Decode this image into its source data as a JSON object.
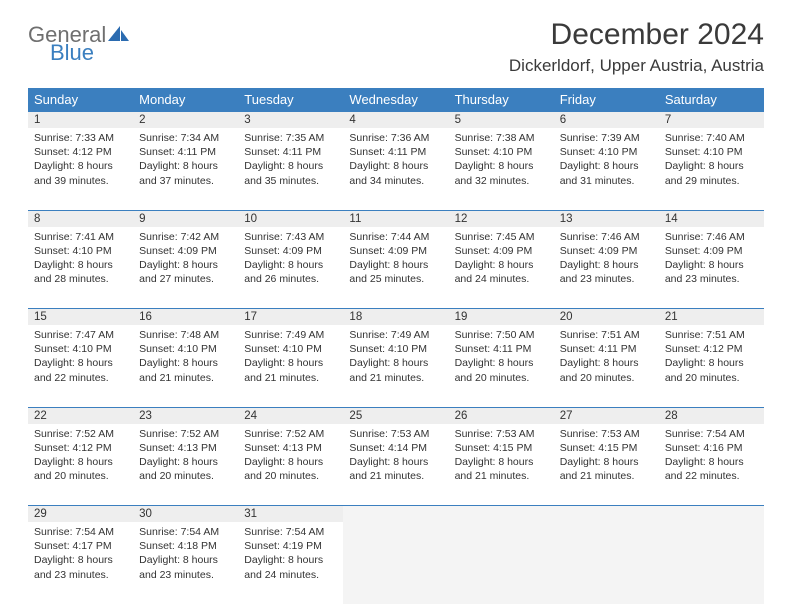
{
  "logo": {
    "text1": "General",
    "text2": "Blue",
    "icon_color": "#2b6bb0",
    "text1_color": "#6f6f6f",
    "text2_color": "#3b7fbf"
  },
  "title": "December 2024",
  "location": "Dickerldorf, Upper Austria, Austria",
  "colors": {
    "header_bg": "#3b7fbf",
    "header_text": "#ffffff",
    "daybar_bg": "#eeeeee",
    "border": "#3b7fbf",
    "empty_bg": "#f4f4f4",
    "text": "#333333"
  },
  "day_headers": [
    "Sunday",
    "Monday",
    "Tuesday",
    "Wednesday",
    "Thursday",
    "Friday",
    "Saturday"
  ],
  "weeks": [
    {
      "nums": [
        "1",
        "2",
        "3",
        "4",
        "5",
        "6",
        "7"
      ],
      "cells": [
        {
          "sunrise": "Sunrise: 7:33 AM",
          "sunset": "Sunset: 4:12 PM",
          "day1": "Daylight: 8 hours",
          "day2": "and 39 minutes."
        },
        {
          "sunrise": "Sunrise: 7:34 AM",
          "sunset": "Sunset: 4:11 PM",
          "day1": "Daylight: 8 hours",
          "day2": "and 37 minutes."
        },
        {
          "sunrise": "Sunrise: 7:35 AM",
          "sunset": "Sunset: 4:11 PM",
          "day1": "Daylight: 8 hours",
          "day2": "and 35 minutes."
        },
        {
          "sunrise": "Sunrise: 7:36 AM",
          "sunset": "Sunset: 4:11 PM",
          "day1": "Daylight: 8 hours",
          "day2": "and 34 minutes."
        },
        {
          "sunrise": "Sunrise: 7:38 AM",
          "sunset": "Sunset: 4:10 PM",
          "day1": "Daylight: 8 hours",
          "day2": "and 32 minutes."
        },
        {
          "sunrise": "Sunrise: 7:39 AM",
          "sunset": "Sunset: 4:10 PM",
          "day1": "Daylight: 8 hours",
          "day2": "and 31 minutes."
        },
        {
          "sunrise": "Sunrise: 7:40 AM",
          "sunset": "Sunset: 4:10 PM",
          "day1": "Daylight: 8 hours",
          "day2": "and 29 minutes."
        }
      ]
    },
    {
      "nums": [
        "8",
        "9",
        "10",
        "11",
        "12",
        "13",
        "14"
      ],
      "cells": [
        {
          "sunrise": "Sunrise: 7:41 AM",
          "sunset": "Sunset: 4:10 PM",
          "day1": "Daylight: 8 hours",
          "day2": "and 28 minutes."
        },
        {
          "sunrise": "Sunrise: 7:42 AM",
          "sunset": "Sunset: 4:09 PM",
          "day1": "Daylight: 8 hours",
          "day2": "and 27 minutes."
        },
        {
          "sunrise": "Sunrise: 7:43 AM",
          "sunset": "Sunset: 4:09 PM",
          "day1": "Daylight: 8 hours",
          "day2": "and 26 minutes."
        },
        {
          "sunrise": "Sunrise: 7:44 AM",
          "sunset": "Sunset: 4:09 PM",
          "day1": "Daylight: 8 hours",
          "day2": "and 25 minutes."
        },
        {
          "sunrise": "Sunrise: 7:45 AM",
          "sunset": "Sunset: 4:09 PM",
          "day1": "Daylight: 8 hours",
          "day2": "and 24 minutes."
        },
        {
          "sunrise": "Sunrise: 7:46 AM",
          "sunset": "Sunset: 4:09 PM",
          "day1": "Daylight: 8 hours",
          "day2": "and 23 minutes."
        },
        {
          "sunrise": "Sunrise: 7:46 AM",
          "sunset": "Sunset: 4:09 PM",
          "day1": "Daylight: 8 hours",
          "day2": "and 23 minutes."
        }
      ]
    },
    {
      "nums": [
        "15",
        "16",
        "17",
        "18",
        "19",
        "20",
        "21"
      ],
      "cells": [
        {
          "sunrise": "Sunrise: 7:47 AM",
          "sunset": "Sunset: 4:10 PM",
          "day1": "Daylight: 8 hours",
          "day2": "and 22 minutes."
        },
        {
          "sunrise": "Sunrise: 7:48 AM",
          "sunset": "Sunset: 4:10 PM",
          "day1": "Daylight: 8 hours",
          "day2": "and 21 minutes."
        },
        {
          "sunrise": "Sunrise: 7:49 AM",
          "sunset": "Sunset: 4:10 PM",
          "day1": "Daylight: 8 hours",
          "day2": "and 21 minutes."
        },
        {
          "sunrise": "Sunrise: 7:49 AM",
          "sunset": "Sunset: 4:10 PM",
          "day1": "Daylight: 8 hours",
          "day2": "and 21 minutes."
        },
        {
          "sunrise": "Sunrise: 7:50 AM",
          "sunset": "Sunset: 4:11 PM",
          "day1": "Daylight: 8 hours",
          "day2": "and 20 minutes."
        },
        {
          "sunrise": "Sunrise: 7:51 AM",
          "sunset": "Sunset: 4:11 PM",
          "day1": "Daylight: 8 hours",
          "day2": "and 20 minutes."
        },
        {
          "sunrise": "Sunrise: 7:51 AM",
          "sunset": "Sunset: 4:12 PM",
          "day1": "Daylight: 8 hours",
          "day2": "and 20 minutes."
        }
      ]
    },
    {
      "nums": [
        "22",
        "23",
        "24",
        "25",
        "26",
        "27",
        "28"
      ],
      "cells": [
        {
          "sunrise": "Sunrise: 7:52 AM",
          "sunset": "Sunset: 4:12 PM",
          "day1": "Daylight: 8 hours",
          "day2": "and 20 minutes."
        },
        {
          "sunrise": "Sunrise: 7:52 AM",
          "sunset": "Sunset: 4:13 PM",
          "day1": "Daylight: 8 hours",
          "day2": "and 20 minutes."
        },
        {
          "sunrise": "Sunrise: 7:52 AM",
          "sunset": "Sunset: 4:13 PM",
          "day1": "Daylight: 8 hours",
          "day2": "and 20 minutes."
        },
        {
          "sunrise": "Sunrise: 7:53 AM",
          "sunset": "Sunset: 4:14 PM",
          "day1": "Daylight: 8 hours",
          "day2": "and 21 minutes."
        },
        {
          "sunrise": "Sunrise: 7:53 AM",
          "sunset": "Sunset: 4:15 PM",
          "day1": "Daylight: 8 hours",
          "day2": "and 21 minutes."
        },
        {
          "sunrise": "Sunrise: 7:53 AM",
          "sunset": "Sunset: 4:15 PM",
          "day1": "Daylight: 8 hours",
          "day2": "and 21 minutes."
        },
        {
          "sunrise": "Sunrise: 7:54 AM",
          "sunset": "Sunset: 4:16 PM",
          "day1": "Daylight: 8 hours",
          "day2": "and 22 minutes."
        }
      ]
    },
    {
      "nums": [
        "29",
        "30",
        "31",
        "",
        "",
        "",
        ""
      ],
      "cells": [
        {
          "sunrise": "Sunrise: 7:54 AM",
          "sunset": "Sunset: 4:17 PM",
          "day1": "Daylight: 8 hours",
          "day2": "and 23 minutes."
        },
        {
          "sunrise": "Sunrise: 7:54 AM",
          "sunset": "Sunset: 4:18 PM",
          "day1": "Daylight: 8 hours",
          "day2": "and 23 minutes."
        },
        {
          "sunrise": "Sunrise: 7:54 AM",
          "sunset": "Sunset: 4:19 PM",
          "day1": "Daylight: 8 hours",
          "day2": "and 24 minutes."
        },
        null,
        null,
        null,
        null
      ]
    }
  ]
}
